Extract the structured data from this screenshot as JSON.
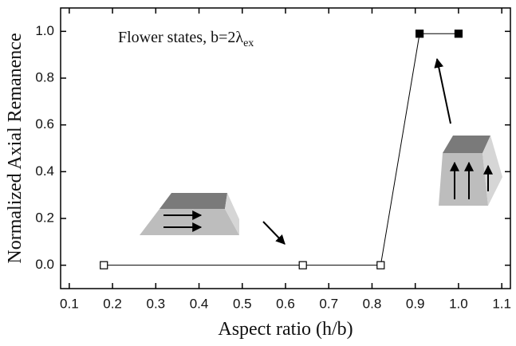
{
  "chart_data": {
    "type": "line",
    "x_label": "Aspect ratio (h/b)",
    "y_label": "Normalized Axial Remanence",
    "annotation": {
      "text": "Flower states, b=2λ",
      "subscript": "ex"
    },
    "x": [
      0.18,
      0.64,
      0.82,
      0.91,
      1.0
    ],
    "values": [
      0,
      0,
      0,
      0.99,
      0.99
    ],
    "marker_filled": [
      false,
      false,
      false,
      true,
      true
    ],
    "color": "#000000",
    "xlim": [
      0.08,
      1.12
    ],
    "ylim": [
      -0.1,
      1.1
    ],
    "xticks": [
      0.1,
      0.2,
      0.3,
      0.4,
      0.5,
      0.6,
      0.7,
      0.8,
      0.9,
      {
        "value": 1,
        "label": "1.0"
      },
      1.1
    ],
    "yticks": [
      {
        "value": 0,
        "label": "0.0"
      },
      0.2,
      0.4,
      0.6,
      0.8,
      {
        "value": 1,
        "label": "1.0"
      }
    ]
  }
}
